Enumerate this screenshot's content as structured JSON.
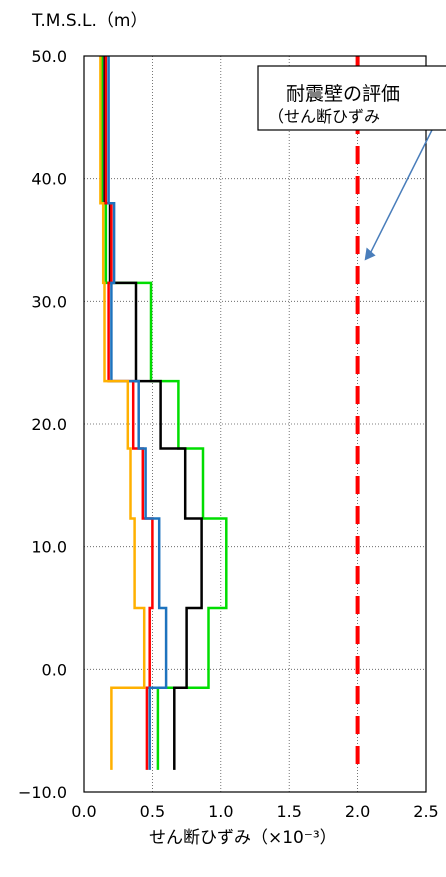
{
  "chart_data": {
    "type": "line",
    "title": "",
    "ylabel": "T.M.S.L.（m）",
    "xlabel": "せん断ひずみ（×10⁻³）",
    "xlim": [
      0.0,
      2.5
    ],
    "ylim": [
      -10.0,
      50.0
    ],
    "x_ticks": [
      "0.0",
      "0.5",
      "1.0",
      "1.5",
      "2.0",
      "2.5"
    ],
    "y_ticks": [
      "−10.0",
      "0.0",
      "10.0",
      "20.0",
      "30.0",
      "40.0",
      "50.0"
    ],
    "grid": "dotted",
    "annotation": {
      "line1": "耐震壁の評価",
      "line2": "（せん断ひずみ",
      "points_to": [
        2.0,
        33.0
      ]
    },
    "limit_line": {
      "x": 2.0,
      "color": "#ff0000",
      "style": "dashed"
    },
    "series": [
      {
        "color": "#00dd00",
        "points": [
          [
            0.13,
            50.0
          ],
          [
            0.13,
            38.0
          ],
          [
            0.16,
            38.0
          ],
          [
            0.16,
            31.5
          ],
          [
            0.49,
            31.5
          ],
          [
            0.49,
            23.5
          ],
          [
            0.69,
            23.5
          ],
          [
            0.69,
            18.0
          ],
          [
            0.87,
            18.0
          ],
          [
            0.87,
            12.3
          ],
          [
            1.04,
            12.3
          ],
          [
            1.04,
            5.0
          ],
          [
            0.91,
            5.0
          ],
          [
            0.91,
            -1.5
          ],
          [
            0.54,
            -1.5
          ],
          [
            0.54,
            -8.2
          ]
        ]
      },
      {
        "color": "#000000",
        "points": [
          [
            0.15,
            50.0
          ],
          [
            0.15,
            38.0
          ],
          [
            0.19,
            38.0
          ],
          [
            0.19,
            31.5
          ],
          [
            0.38,
            31.5
          ],
          [
            0.38,
            23.5
          ],
          [
            0.56,
            23.5
          ],
          [
            0.56,
            18.0
          ],
          [
            0.74,
            18.0
          ],
          [
            0.74,
            12.3
          ],
          [
            0.86,
            12.3
          ],
          [
            0.86,
            5.0
          ],
          [
            0.75,
            5.0
          ],
          [
            0.75,
            -1.5
          ],
          [
            0.66,
            -1.5
          ],
          [
            0.66,
            -8.2
          ]
        ]
      },
      {
        "color": "#ff0000",
        "points": [
          [
            0.16,
            50.0
          ],
          [
            0.16,
            38.0
          ],
          [
            0.2,
            38.0
          ],
          [
            0.2,
            31.5
          ],
          [
            0.18,
            31.5
          ],
          [
            0.18,
            23.5
          ],
          [
            0.36,
            23.5
          ],
          [
            0.36,
            18.0
          ],
          [
            0.43,
            18.0
          ],
          [
            0.43,
            12.3
          ],
          [
            0.5,
            12.3
          ],
          [
            0.5,
            5.0
          ],
          [
            0.48,
            5.0
          ],
          [
            0.48,
            -1.5
          ],
          [
            0.46,
            -1.5
          ],
          [
            0.46,
            -8.2
          ]
        ]
      },
      {
        "color": "#1e73be",
        "points": [
          [
            0.18,
            50.0
          ],
          [
            0.18,
            38.0
          ],
          [
            0.22,
            38.0
          ],
          [
            0.22,
            31.5
          ],
          [
            0.2,
            31.5
          ],
          [
            0.2,
            23.5
          ],
          [
            0.4,
            23.5
          ],
          [
            0.4,
            18.0
          ],
          [
            0.45,
            18.0
          ],
          [
            0.45,
            12.3
          ],
          [
            0.55,
            12.3
          ],
          [
            0.55,
            5.0
          ],
          [
            0.6,
            5.0
          ],
          [
            0.6,
            -1.5
          ],
          [
            0.48,
            -1.5
          ],
          [
            0.48,
            -8.2
          ]
        ]
      },
      {
        "color": "#ffb000",
        "points": [
          [
            0.12,
            50.0
          ],
          [
            0.12,
            38.0
          ],
          [
            0.14,
            38.0
          ],
          [
            0.14,
            31.5
          ],
          [
            0.15,
            31.5
          ],
          [
            0.15,
            23.5
          ],
          [
            0.32,
            23.5
          ],
          [
            0.32,
            18.0
          ],
          [
            0.34,
            18.0
          ],
          [
            0.34,
            12.3
          ],
          [
            0.37,
            12.3
          ],
          [
            0.37,
            5.0
          ],
          [
            0.44,
            5.0
          ],
          [
            0.44,
            -1.5
          ],
          [
            0.2,
            -1.5
          ],
          [
            0.2,
            -8.2
          ]
        ]
      }
    ]
  }
}
